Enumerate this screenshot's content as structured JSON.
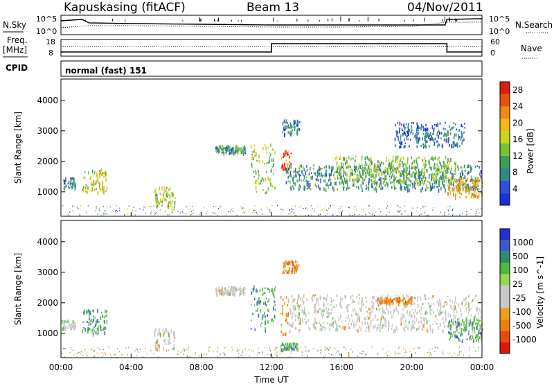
{
  "header": {
    "station": "Kapuskasing (fitACF)",
    "beam": "Beam 13",
    "date": "04/Nov/2011"
  },
  "top_panels": {
    "nsky_label": "N.Sky",
    "nsky_ticks": [
      "10^5",
      "10^0"
    ],
    "nsearch_label": "N.Search",
    "nsearch_ticks": [
      "10^5",
      "10^0"
    ],
    "freq_label_1": "Freq.",
    "freq_label_2": "[MHz]",
    "freq_ticks": [
      "18",
      "8"
    ],
    "nave_label": "Nave",
    "nave_ticks": [
      "60",
      "0"
    ],
    "cpid_label": "CPID",
    "cpid_value": "normal (fast) 151"
  },
  "chart_data": [
    {
      "type": "heatmap",
      "name": "power",
      "ylabel": "Slant Range [km]",
      "yticks": [
        1000,
        2000,
        3000,
        4000
      ],
      "ylim": [
        200,
        4700
      ],
      "xlim": [
        0,
        24
      ],
      "colorbar": {
        "label": "Power [dB]",
        "ticks": [
          "4",
          "8",
          "12",
          "16",
          "20",
          "24",
          "28"
        ],
        "range": [
          0,
          30
        ],
        "colors": [
          "#1b2fe0",
          "#2e4fd6",
          "#2f8a86",
          "#3f9e55",
          "#78c23a",
          "#c8d61e",
          "#f2b914",
          "#f08a10",
          "#e8520c",
          "#e01b0e"
        ]
      },
      "echo_regions": [
        {
          "t0": 0.1,
          "t1": 0.8,
          "r0": 1150,
          "r1": 1500,
          "level": 0.25
        },
        {
          "t0": 1.2,
          "t1": 2.6,
          "r0": 1000,
          "r1": 1800,
          "level": 0.55
        },
        {
          "t0": 5.3,
          "t1": 6.5,
          "r0": 500,
          "r1": 1200,
          "level": 0.5
        },
        {
          "t0": 8.8,
          "t1": 10.5,
          "r0": 2300,
          "r1": 2550,
          "level": 0.3
        },
        {
          "t0": 10.8,
          "t1": 12.2,
          "r0": 1000,
          "r1": 2600,
          "level": 0.45
        },
        {
          "t0": 12.5,
          "t1": 13.1,
          "r0": 1700,
          "r1": 2400,
          "level": 0.85
        },
        {
          "t0": 12.6,
          "t1": 13.6,
          "r0": 2900,
          "r1": 3400,
          "level": 0.25
        },
        {
          "t0": 12.8,
          "t1": 24.0,
          "r0": 1100,
          "r1": 1900,
          "level": 0.3
        },
        {
          "t0": 15.5,
          "t1": 22.5,
          "r0": 1300,
          "r1": 2200,
          "level": 0.45
        },
        {
          "t0": 22.0,
          "t1": 24.0,
          "r0": 850,
          "r1": 1500,
          "level": 0.7
        },
        {
          "t0": 19.0,
          "t1": 23.0,
          "r0": 2500,
          "r1": 3300,
          "level": 0.2
        }
      ]
    },
    {
      "type": "heatmap",
      "name": "velocity",
      "ylabel": "Slant Range [km]",
      "yticks": [
        1000,
        2000,
        3000,
        4000
      ],
      "ylim": [
        200,
        4700
      ],
      "xlim": [
        0,
        24
      ],
      "xlabel": "Time UT",
      "xticks": [
        "00:00",
        "04:00",
        "08:00",
        "12:00",
        "16:00",
        "20:00",
        "00:00"
      ],
      "colorbar": {
        "label": "Velocity [m s^-1]",
        "ticks": [
          "1000",
          "500",
          "100",
          "25",
          "-25",
          "-100",
          "-500",
          "-1000"
        ],
        "colors": [
          "#2530d6",
          "#3b5ac8",
          "#2f8b6a",
          "#4db83a",
          "#9bd35a",
          "#c8c8c8",
          "#c8c8c8",
          "#f0a018",
          "#ee7c10",
          "#e84a0a",
          "#e0160c"
        ]
      },
      "echo_regions": [
        {
          "t0": 0.0,
          "t1": 0.8,
          "r0": 1150,
          "r1": 1450,
          "v": "gray"
        },
        {
          "t0": 1.2,
          "t1": 2.6,
          "r0": 1000,
          "r1": 1800,
          "v": "green"
        },
        {
          "t0": 5.3,
          "t1": 6.5,
          "r0": 500,
          "r1": 1200,
          "v": "gray"
        },
        {
          "t0": 8.8,
          "t1": 10.5,
          "r0": 2300,
          "r1": 2550,
          "v": "gray"
        },
        {
          "t0": 10.8,
          "t1": 12.2,
          "r0": 1100,
          "r1": 2600,
          "v": "green"
        },
        {
          "t0": 12.5,
          "t1": 13.0,
          "r0": 1000,
          "r1": 2300,
          "v": "orange"
        },
        {
          "t0": 12.6,
          "t1": 13.6,
          "r0": 3000,
          "r1": 3400,
          "v": "orange"
        },
        {
          "t0": 13.0,
          "t1": 24.0,
          "r0": 1100,
          "r1": 2300,
          "v": "gray"
        },
        {
          "t0": 18.0,
          "t1": 20.0,
          "r0": 2000,
          "r1": 2200,
          "v": "orange"
        },
        {
          "t0": 22.0,
          "t1": 24.0,
          "r0": 800,
          "r1": 1500,
          "v": "green"
        },
        {
          "t0": 12.5,
          "t1": 13.5,
          "r0": 500,
          "r1": 700,
          "v": "green"
        }
      ]
    }
  ]
}
